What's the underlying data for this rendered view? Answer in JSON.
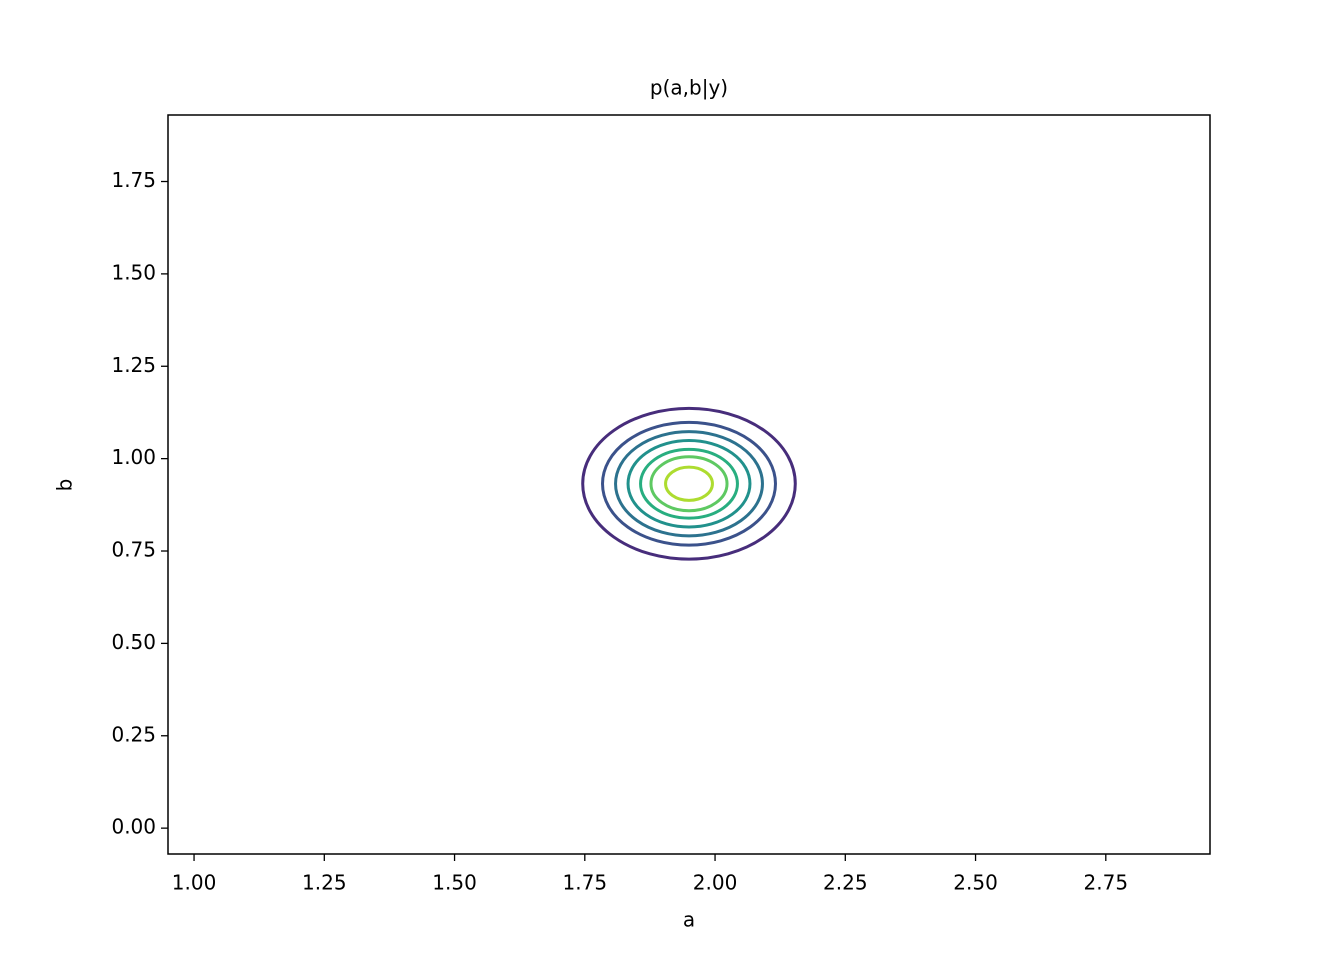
{
  "chart_data": {
    "type": "contour",
    "title": "p(a,b|y)",
    "x_label": "a",
    "y_label": "b",
    "xlim": [
      0.95,
      2.95
    ],
    "ylim": [
      -0.07,
      1.93
    ],
    "xticks": [
      {
        "value": 1,
        "label": "1.00"
      },
      {
        "value": 1.25,
        "label": "1.25"
      },
      {
        "value": 1.5,
        "label": "1.50"
      },
      {
        "value": 1.75,
        "label": "1.75"
      },
      {
        "value": 2,
        "label": "2.00"
      },
      {
        "value": 2.25,
        "label": "2.25"
      },
      {
        "value": 2.5,
        "label": "2.50"
      },
      {
        "value": 2.75,
        "label": "2.75"
      }
    ],
    "yticks": [
      {
        "value": 0,
        "label": "0.00"
      },
      {
        "value": 0.25,
        "label": "0.25"
      },
      {
        "value": 0.5,
        "label": "0.50"
      },
      {
        "value": 0.75,
        "label": "0.75"
      },
      {
        "value": 1,
        "label": "1.00"
      },
      {
        "value": 1.25,
        "label": "1.25"
      },
      {
        "value": 1.5,
        "label": "1.50"
      },
      {
        "value": 1.75,
        "label": "1.75"
      }
    ],
    "center": [
      1.95,
      0.932
    ],
    "radii": [
      0.204,
      0.166,
      0.141,
      0.117,
      0.093,
      0.073,
      0.045
    ],
    "colors": [
      "#472d7b",
      "#3b528b",
      "#2c728e",
      "#21918c",
      "#28ae80",
      "#5ec962",
      "#addc30"
    ]
  }
}
